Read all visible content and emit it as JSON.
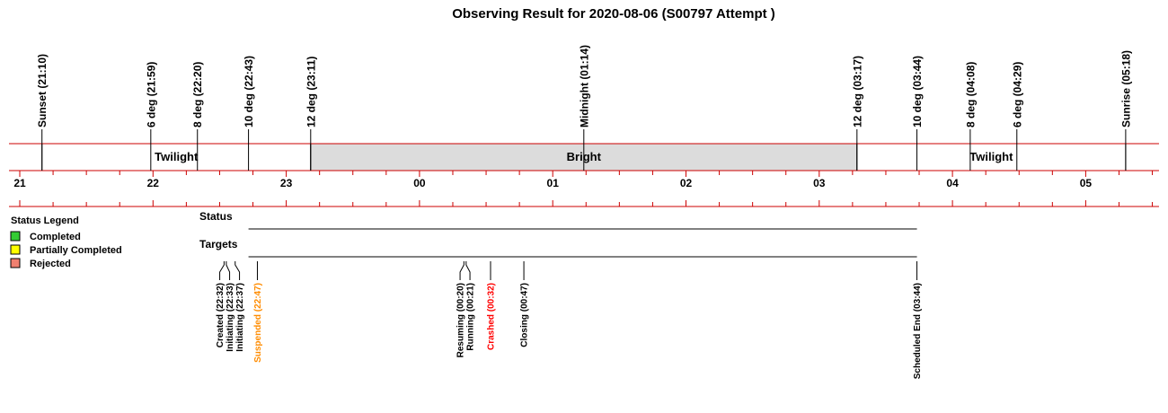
{
  "chart_data": {
    "type": "timeline",
    "title": "Observing Result for 2020-08-06 (S00797 Attempt )",
    "time_range": [
      "21:00",
      "05:32"
    ],
    "hour_ticks": [
      {
        "time": "21:00",
        "label": "21"
      },
      {
        "time": "22:00",
        "label": "22"
      },
      {
        "time": "23:00",
        "label": "23"
      },
      {
        "time": "00:00",
        "label": "00"
      },
      {
        "time": "01:00",
        "label": "01"
      },
      {
        "time": "02:00",
        "label": "02"
      },
      {
        "time": "03:00",
        "label": "03"
      },
      {
        "time": "04:00",
        "label": "04"
      },
      {
        "time": "05:00",
        "label": "05"
      }
    ],
    "sky_events": [
      {
        "time": "21:10",
        "label": "Sunset (21:10)"
      },
      {
        "time": "21:59",
        "label": "6 deg (21:59)"
      },
      {
        "time": "22:20",
        "label": "8 deg (22:20)"
      },
      {
        "time": "22:43",
        "label": "10 deg (22:43)"
      },
      {
        "time": "23:11",
        "label": "12 deg (23:11)"
      },
      {
        "time": "01:14",
        "label": "Midnight (01:14)"
      },
      {
        "time": "03:17",
        "label": "12 deg (03:17)"
      },
      {
        "time": "03:44",
        "label": "10 deg (03:44)"
      },
      {
        "time": "04:08",
        "label": "8 deg (04:08)"
      },
      {
        "time": "04:29",
        "label": "6 deg (04:29)"
      },
      {
        "time": "05:18",
        "label": "Sunrise (05:18)"
      }
    ],
    "bands": [
      {
        "start": "21:10",
        "end": "23:11",
        "label": "Twilight",
        "color": "#ffffff"
      },
      {
        "start": "23:11",
        "end": "03:17",
        "label": "Bright",
        "color": "#dcdcdc"
      },
      {
        "start": "03:17",
        "end": "05:18",
        "label": "Twilight",
        "color": "#ffffff"
      }
    ],
    "rows": [
      {
        "label": "Status",
        "start": "22:43",
        "end": "03:44"
      },
      {
        "label": "Targets",
        "start": "22:43",
        "end": "03:44"
      }
    ],
    "status_events": [
      {
        "time": "22:32",
        "label": "Created (22:32)",
        "color": "#000000"
      },
      {
        "time": "22:33",
        "label": "Initiating (22:33)",
        "color": "#000000"
      },
      {
        "time": "22:37",
        "label": "Initiating (22:37)",
        "color": "#000000"
      },
      {
        "time": "22:47",
        "label": "Suspended (22:47)",
        "color": "#ff8c00"
      },
      {
        "time": "00:20",
        "label": "Resuming (00:20)",
        "color": "#000000"
      },
      {
        "time": "00:21",
        "label": "Running (00:21)",
        "color": "#000000"
      },
      {
        "time": "00:32",
        "label": "Crashed (00:32)",
        "color": "#ff0000"
      },
      {
        "time": "00:47",
        "label": "Closing (00:47)",
        "color": "#000000"
      },
      {
        "time": "03:44",
        "label": "Scheduled End (03:44)",
        "color": "#000000"
      }
    ],
    "legend": {
      "title": "Status Legend",
      "placement": "left",
      "items": [
        {
          "label": "Completed",
          "color": "#33cc33"
        },
        {
          "label": "Partially Completed",
          "color": "#ffff00"
        },
        {
          "label": "Rejected",
          "color": "#f08070"
        }
      ]
    },
    "colors": {
      "axis_line": "#cc0000",
      "text": "#000000"
    }
  }
}
